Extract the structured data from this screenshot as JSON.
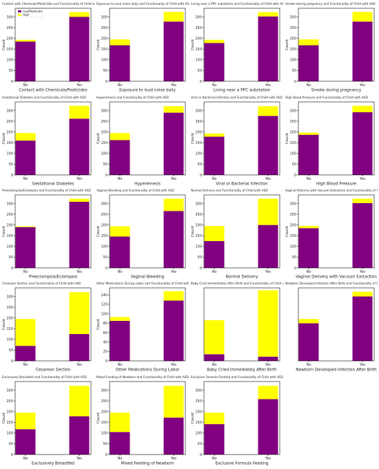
{
  "colors": {
    "low": "#800080",
    "high": "#ffff00",
    "axis": "#000000"
  },
  "legend": {
    "low_label": "Low/Moderate",
    "high_label": "High"
  },
  "y_axis_label": "Count",
  "chart_data": [
    {
      "type": "bar",
      "stacked": true,
      "title": "Contact with Chemicals/Pesticides and Functionality of Child with ASD",
      "xlabel": "Contact with Chemicals/Pesticides",
      "ylabel": "Count",
      "categories": [
        "No",
        "Yes"
      ],
      "series": [
        {
          "name": "Low/Moderate",
          "values": [
            185,
            300
          ]
        },
        {
          "name": "High",
          "values": [
            8,
            22
          ]
        }
      ],
      "ylim": [
        0,
        340
      ],
      "yticks": [
        0,
        50,
        100,
        150,
        200,
        250,
        300
      ],
      "legend": "top-left"
    },
    {
      "type": "bar",
      "stacked": true,
      "title": "Exposure to loud noise daily and Functionality of Child with ASD",
      "xlabel": "Exposure to loud noise daily",
      "ylabel": "Count",
      "categories": [
        "No",
        "Yes"
      ],
      "series": [
        {
          "name": "Low/Moderate",
          "values": [
            168,
            278
          ]
        },
        {
          "name": "High",
          "values": [
            27,
            45
          ]
        }
      ],
      "ylim": [
        0,
        340
      ],
      "yticks": [
        0,
        50,
        100,
        150,
        200,
        250,
        300
      ]
    },
    {
      "type": "bar",
      "stacked": true,
      "title": "Living near a PPC substation and Functionality of Child with ASD",
      "xlabel": "Living near a PPC substation",
      "ylabel": "Count",
      "categories": [
        "No",
        "Yes"
      ],
      "series": [
        {
          "name": "Low/Moderate",
          "values": [
            178,
            302
          ]
        },
        {
          "name": "High",
          "values": [
            15,
            20
          ]
        }
      ],
      "ylim": [
        0,
        340
      ],
      "yticks": [
        0,
        50,
        100,
        150,
        200,
        250,
        300
      ]
    },
    {
      "type": "bar",
      "stacked": true,
      "title": "Smoke during pregnancy and Functionality of Child with ASD",
      "xlabel": "Smoke during pregnancy",
      "ylabel": "Count",
      "categories": [
        "No",
        "Yes"
      ],
      "series": [
        {
          "name": "Low/Moderate",
          "values": [
            168,
            278
          ]
        },
        {
          "name": "High",
          "values": [
            27,
            45
          ]
        }
      ],
      "ylim": [
        0,
        340
      ],
      "yticks": [
        0,
        50,
        100,
        150,
        200,
        250,
        300
      ]
    },
    {
      "type": "bar",
      "stacked": true,
      "title": "Gestational Diabetes and Functionality of Child with ASD",
      "xlabel": "Gestational Diabetes",
      "ylabel": "Count",
      "categories": [
        "No",
        "Yes"
      ],
      "series": [
        {
          "name": "Low/Moderate",
          "values": [
            160,
            262
          ]
        },
        {
          "name": "High",
          "values": [
            35,
            60
          ]
        }
      ],
      "ylim": [
        0,
        340
      ],
      "yticks": [
        0,
        50,
        100,
        150,
        200,
        250,
        300
      ]
    },
    {
      "type": "bar",
      "stacked": true,
      "title": "Hyperemesis and Functionality of Child with ASD",
      "xlabel": "Hyperemesis",
      "ylabel": "Count",
      "categories": [
        "No",
        "Yes"
      ],
      "series": [
        {
          "name": "Low/Moderate",
          "values": [
            162,
            290
          ]
        },
        {
          "name": "High",
          "values": [
            33,
            30
          ]
        }
      ],
      "ylim": [
        0,
        340
      ],
      "yticks": [
        0,
        50,
        100,
        150,
        200,
        250,
        300
      ]
    },
    {
      "type": "bar",
      "stacked": true,
      "title": "Viral or Bacterial Infection and Functionality of Child with ASD",
      "xlabel": "Viral or Bacterial Infection",
      "ylabel": "Count",
      "categories": [
        "No",
        "Yes"
      ],
      "series": [
        {
          "name": "Low/Moderate",
          "values": [
            178,
            275
          ]
        },
        {
          "name": "High",
          "values": [
            15,
            45
          ]
        }
      ],
      "ylim": [
        0,
        340
      ],
      "yticks": [
        0,
        50,
        100,
        150,
        200,
        250,
        300
      ]
    },
    {
      "type": "bar",
      "stacked": true,
      "title": "High Blood Pressure and Functionality of Child with ASD",
      "xlabel": "High Blood Pressure",
      "ylabel": "Count",
      "categories": [
        "No",
        "Yes"
      ],
      "series": [
        {
          "name": "Low/Moderate",
          "values": [
            187,
            292
          ]
        },
        {
          "name": "High",
          "values": [
            10,
            30
          ]
        }
      ],
      "ylim": [
        0,
        340
      ],
      "yticks": [
        0,
        50,
        100,
        150,
        200,
        250,
        300
      ]
    },
    {
      "type": "bar",
      "stacked": true,
      "title": "Preeclampsia/Eclampsia and Functionality of Child with ASD",
      "xlabel": "Preeclampsia/Eclampsia",
      "ylabel": "Count",
      "categories": [
        "No",
        "Yes"
      ],
      "series": [
        {
          "name": "Low/Moderate",
          "values": [
            190,
            308
          ]
        },
        {
          "name": "High",
          "values": [
            4,
            14
          ]
        }
      ],
      "ylim": [
        0,
        340
      ],
      "yticks": [
        0,
        50,
        100,
        150,
        200,
        250,
        300
      ]
    },
    {
      "type": "bar",
      "stacked": true,
      "title": "Vaginal Bleeding and Functionality of Child with ASD",
      "xlabel": "Vaginal Bleeding",
      "ylabel": "Count",
      "categories": [
        "No",
        "Yes"
      ],
      "series": [
        {
          "name": "Low/Moderate",
          "values": [
            146,
            265
          ]
        },
        {
          "name": "High",
          "values": [
            48,
            57
          ]
        }
      ],
      "ylim": [
        0,
        340
      ],
      "yticks": [
        0,
        50,
        100,
        150,
        200,
        250,
        300
      ]
    },
    {
      "type": "bar",
      "stacked": true,
      "title": "Normal Delivery and Functionality of Child with ASD",
      "xlabel": "Normal Delivery",
      "ylabel": "Count",
      "categories": [
        "No",
        "Yes"
      ],
      "series": [
        {
          "name": "Low/Moderate",
          "values": [
            125,
            200
          ]
        },
        {
          "name": "High",
          "values": [
            70,
            122
          ]
        }
      ],
      "ylim": [
        0,
        340
      ],
      "yticks": [
        0,
        50,
        100,
        150,
        200,
        250,
        300
      ]
    },
    {
      "type": "bar",
      "stacked": true,
      "title": "Vaginal Delivery with Vacuum Extraction and Functionality of Child with ASD",
      "xlabel": "Vaginal Delivery with Vacuum Extraction",
      "ylabel": "Count",
      "categories": [
        "No",
        "Yes"
      ],
      "series": [
        {
          "name": "Low/Moderate",
          "values": [
            185,
            302
          ]
        },
        {
          "name": "High",
          "values": [
            10,
            20
          ]
        }
      ],
      "ylim": [
        0,
        340
      ],
      "yticks": [
        0,
        50,
        100,
        150,
        200,
        250,
        300
      ]
    },
    {
      "type": "bar",
      "stacked": true,
      "title": "Cesarean Section and Functionality of Child with ASD",
      "xlabel": "Cesarean Section",
      "ylabel": "Count",
      "categories": [
        "No",
        "Yes"
      ],
      "series": [
        {
          "name": "Low/Moderate",
          "values": [
            70,
            125
          ]
        },
        {
          "name": "High",
          "values": [
            125,
            195
          ]
        }
      ],
      "ylim": [
        0,
        340
      ],
      "yticks": [
        0,
        50,
        100,
        150,
        200,
        250,
        300
      ]
    },
    {
      "type": "bar",
      "stacked": true,
      "title": "Other Medications During Labor and Functionality of Child with ASD",
      "xlabel": "Other Medications During Labor",
      "ylabel": "Count",
      "categories": [
        "No",
        "Yes"
      ],
      "series": [
        {
          "name": "Low/Moderate",
          "values": [
            85,
            128
          ]
        },
        {
          "name": "High",
          "values": [
            8,
            20
          ]
        }
      ],
      "ylim": [
        0,
        155
      ],
      "yticks": [
        0,
        20,
        40,
        60,
        80,
        100,
        120,
        140
      ]
    },
    {
      "type": "bar",
      "stacked": true,
      "title": "Baby Cried Immediately After Birth and Functionality of Child with ASD",
      "xlabel": "Baby Cried Immediately After Birth",
      "ylabel": "",
      "categories": [
        "No",
        "Yes"
      ],
      "series": [
        {
          "name": "Low/Moderate",
          "values": [
            28,
            18
          ]
        },
        {
          "name": "High",
          "values": [
            145,
            282
          ]
        }
      ],
      "ylim": [
        0,
        310
      ],
      "yticks": []
    },
    {
      "type": "bar",
      "stacked": true,
      "title": "Newborn Developed Infection After Birth and Functionality of Child with ASD",
      "xlabel": "Newborn Developed Infection After Birth",
      "ylabel": "",
      "categories": [
        "No",
        "Yes"
      ],
      "series": [
        {
          "name": "Low/Moderate",
          "values": [
            175,
            300
          ]
        },
        {
          "name": "High",
          "values": [
            20,
            22
          ]
        }
      ],
      "ylim": [
        0,
        340
      ],
      "yticks": []
    },
    {
      "type": "bar",
      "stacked": true,
      "title": "Exclusively Breastfed and Functionality of Child with ASD",
      "xlabel": "Exclusively Breastfed",
      "ylabel": "Count",
      "categories": [
        "No",
        "Yes"
      ],
      "series": [
        {
          "name": "Low/Moderate",
          "values": [
            118,
            178
          ]
        },
        {
          "name": "High",
          "values": [
            77,
            142
          ]
        }
      ],
      "ylim": [
        0,
        340
      ],
      "yticks": [
        0,
        50,
        100,
        150,
        200,
        250,
        300
      ]
    },
    {
      "type": "bar",
      "stacked": true,
      "title": "Mixed Feeding of Newborn and Functionality of Child with ASD",
      "xlabel": "Mixed Feeding of Newborn",
      "ylabel": "Count",
      "categories": [
        "No",
        "Yes"
      ],
      "series": [
        {
          "name": "Low/Moderate",
          "values": [
            105,
            172
          ]
        },
        {
          "name": "High",
          "values": [
            90,
            148
          ]
        }
      ],
      "ylim": [
        0,
        340
      ],
      "yticks": [
        0,
        50,
        100,
        150,
        200,
        250,
        300
      ]
    },
    {
      "type": "bar",
      "stacked": true,
      "title": "Exclusive Formula Feeding and Functionality of Child with ASD",
      "xlabel": "Exclusive Formula Feeding",
      "ylabel": "Count",
      "categories": [
        "No",
        "Yes"
      ],
      "series": [
        {
          "name": "Low/Moderate",
          "values": [
            142,
            258
          ]
        },
        {
          "name": "High",
          "values": [
            53,
            62
          ]
        }
      ],
      "ylim": [
        0,
        340
      ],
      "yticks": [
        0,
        50,
        100,
        150,
        200,
        250,
        300
      ]
    }
  ]
}
